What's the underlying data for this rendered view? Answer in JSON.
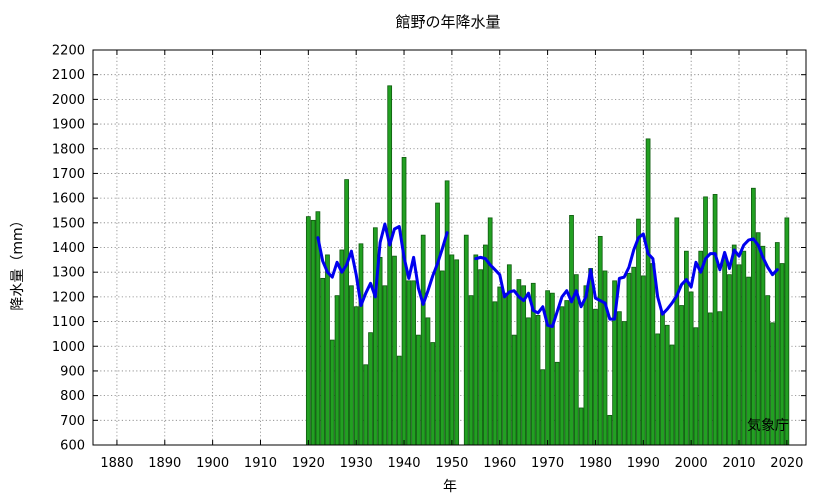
{
  "chart_data": {
    "type": "bar",
    "title": "館野の年降水量",
    "xlabel": "年",
    "ylabel": "降水量（mm）",
    "credit": "気象庁",
    "xlim": [
      1875,
      2024
    ],
    "ylim": [
      600,
      2200
    ],
    "x_ticks": [
      1880,
      1890,
      1900,
      1910,
      1920,
      1930,
      1940,
      1950,
      1960,
      1970,
      1980,
      1990,
      2000,
      2010,
      2020
    ],
    "y_ticks": [
      600,
      700,
      800,
      900,
      1000,
      1100,
      1200,
      1300,
      1400,
      1500,
      1600,
      1700,
      1800,
      1900,
      2000,
      2100,
      2200
    ],
    "grid": true,
    "colors": {
      "bar": "#22a022",
      "bar_edge": "#0e5a0e",
      "moving_average": "#0000ee"
    },
    "series": [
      {
        "kind": "bar",
        "x": [
          1920,
          1921,
          1922,
          1923,
          1924,
          1925,
          1926,
          1927,
          1928,
          1929,
          1930,
          1931,
          1932,
          1933,
          1934,
          1935,
          1936,
          1937,
          1938,
          1939,
          1940,
          1941,
          1942,
          1943,
          1944,
          1945,
          1946,
          1947,
          1948,
          1949,
          1950,
          1951,
          1953,
          1954,
          1955,
          1956,
          1957,
          1958,
          1959,
          1960,
          1961,
          1962,
          1963,
          1964,
          1965,
          1966,
          1967,
          1968,
          1969,
          1970,
          1971,
          1972,
          1973,
          1974,
          1975,
          1976,
          1977,
          1978,
          1979,
          1980,
          1981,
          1982,
          1983,
          1984,
          1985,
          1986,
          1987,
          1988,
          1989,
          1990,
          1991,
          1992,
          1993,
          1994,
          1995,
          1996,
          1997,
          1998,
          1999,
          2000,
          2001,
          2002,
          2003,
          2004,
          2005,
          2006,
          2007,
          2008,
          2009,
          2010,
          2011,
          2012,
          2013,
          2014,
          2015,
          2016,
          2017,
          2018,
          2019,
          2020
        ],
        "values": [
          1525,
          1510,
          1545,
          1275,
          1370,
          1025,
          1205,
          1390,
          1675,
          1245,
          1160,
          1415,
          925,
          1055,
          1480,
          1360,
          1245,
          2055,
          1365,
          960,
          1765,
          1265,
          1265,
          1045,
          1450,
          1115,
          1015,
          1580,
          1305,
          1670,
          1370,
          1350,
          1450,
          1205,
          1370,
          1310,
          1410,
          1520,
          1180,
          1240,
          1215,
          1330,
          1045,
          1270,
          1245,
          1115,
          1255,
          1125,
          905,
          1225,
          1215,
          935,
          1160,
          1185,
          1530,
          1290,
          750,
          1245,
          1315,
          1150,
          1445,
          1305,
          720,
          1265,
          1140,
          1100,
          1295,
          1320,
          1515,
          1285,
          1840,
          1335,
          1050,
          1140,
          1085,
          1005,
          1520,
          1165,
          1385,
          1220,
          1075,
          1385,
          1605,
          1135,
          1615,
          1140,
          1365,
          1290,
          1410,
          1330,
          1385,
          1280,
          1640,
          1460,
          1405,
          1205,
          1095,
          1420,
          1335,
          1520
        ]
      },
      {
        "kind": "line",
        "x": [
          1922,
          1923,
          1924,
          1925,
          1926,
          1927,
          1928,
          1929,
          1930,
          1931,
          1932,
          1933,
          1934,
          1935,
          1936,
          1937,
          1938,
          1939,
          1940,
          1941,
          1942,
          1943,
          1944,
          1945,
          1946,
          1947,
          1948,
          1949
        ],
        "values": [
          1440,
          1345,
          1300,
          1280,
          1340,
          1300,
          1330,
          1385,
          1290,
          1165,
          1215,
          1255,
          1200,
          1420,
          1495,
          1410,
          1475,
          1485,
          1360,
          1275,
          1360,
          1235,
          1170,
          1225,
          1285,
          1335,
          1395,
          1460
        ]
      },
      {
        "kind": "line",
        "x": [
          1955,
          1956,
          1957,
          1958,
          1959,
          1960,
          1961,
          1962,
          1963,
          1964,
          1965,
          1966,
          1967,
          1968,
          1969,
          1970,
          1971,
          1972,
          1973,
          1974,
          1975,
          1976,
          1977,
          1978,
          1979,
          1980,
          1981,
          1982,
          1983,
          1984,
          1985,
          1986,
          1987,
          1988,
          1989,
          1990,
          1991,
          1992,
          1993,
          1994,
          1995,
          1996,
          1997,
          1998,
          1999,
          2000,
          2001,
          2002,
          2003,
          2004,
          2005,
          2006,
          2007,
          2008,
          2009,
          2010,
          2011,
          2012,
          2013,
          2014,
          2015,
          2016,
          2017,
          2018
        ],
        "values": [
          1355,
          1360,
          1355,
          1330,
          1310,
          1290,
          1200,
          1220,
          1225,
          1200,
          1185,
          1215,
          1145,
          1135,
          1160,
          1085,
          1080,
          1140,
          1200,
          1225,
          1180,
          1225,
          1160,
          1200,
          1310,
          1195,
          1185,
          1175,
          1110,
          1110,
          1275,
          1280,
          1320,
          1390,
          1440,
          1455,
          1375,
          1355,
          1200,
          1130,
          1150,
          1175,
          1205,
          1250,
          1270,
          1240,
          1340,
          1300,
          1355,
          1375,
          1375,
          1310,
          1380,
          1315,
          1390,
          1365,
          1410,
          1430,
          1435,
          1410,
          1360,
          1320,
          1290,
          1310
        ]
      }
    ]
  }
}
